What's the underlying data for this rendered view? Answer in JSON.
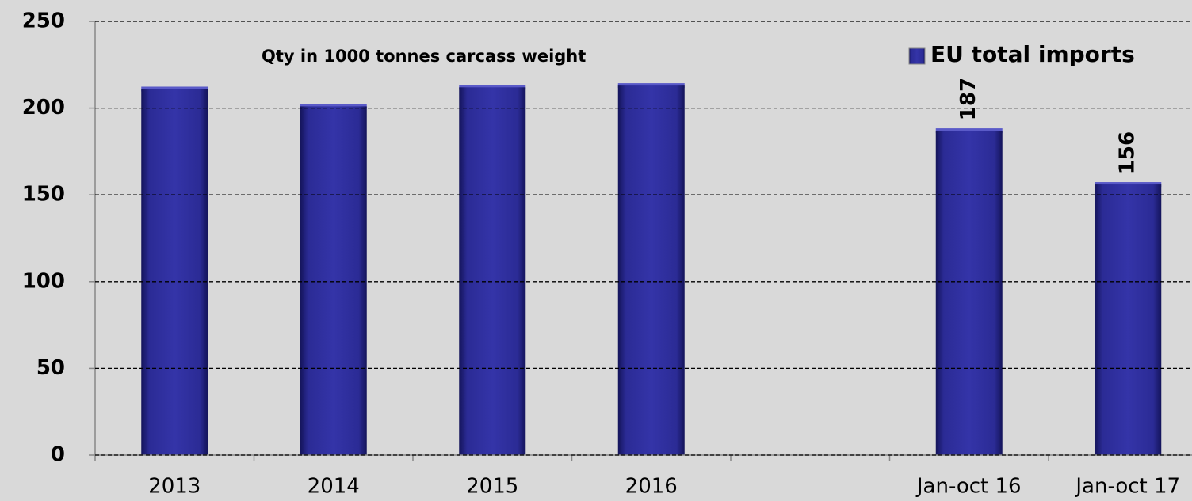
{
  "chart_data": {
    "type": "bar",
    "title": "Qty in 1000 tonnes carcass weight",
    "categories": [
      "2013",
      "2014",
      "2015",
      "2016",
      null,
      "Jan-oct 16",
      "Jan-oct 17"
    ],
    "series": [
      {
        "name": "EU total imports",
        "color": "#2b2b95",
        "values": [
          211,
          201,
          212,
          213,
          null,
          187,
          156
        ]
      }
    ],
    "ylim": [
      0,
      250
    ],
    "yticks": [
      0,
      50,
      100,
      150,
      200,
      250
    ],
    "grid": true
  }
}
